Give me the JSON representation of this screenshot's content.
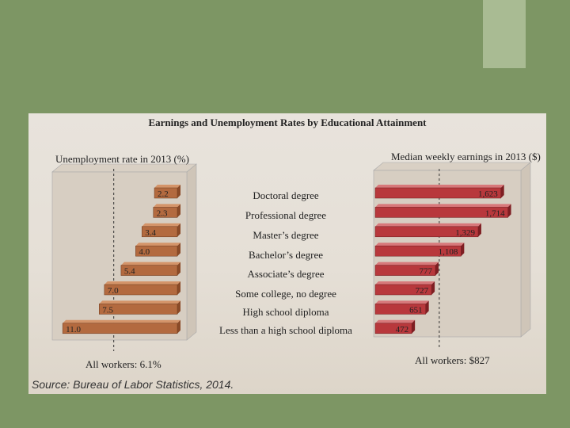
{
  "chart_data": [
    {
      "type": "bar",
      "title": "Earnings and Unemployment Rates by Educational Attainment",
      "panel_label": "Unemployment rate in 2013 (%)",
      "categories": [
        "Doctoral degree",
        "Professional degree",
        "Master’s degree",
        "Bachelor’s degree",
        "Associate’s degree",
        "Some college, no degree",
        "High school diploma",
        "Less than a high school diploma"
      ],
      "values": [
        2.2,
        2.3,
        3.4,
        4.0,
        5.4,
        7.0,
        7.5,
        11.0
      ],
      "value_labels": [
        "2.2",
        "2.3",
        "3.4",
        "4.0",
        "5.4",
        "7.0",
        "7.5",
        "11.0"
      ],
      "reference_value": 6.1,
      "reference_label": "All workers: 6.1%",
      "xlim": [
        0,
        12
      ],
      "orientation": "horizontal-leftward"
    },
    {
      "type": "bar",
      "panel_label": "Median weekly earnings in 2013 ($)",
      "categories": [
        "Doctoral degree",
        "Professional degree",
        "Master’s degree",
        "Bachelor’s degree",
        "Associate’s degree",
        "Some college, no degree",
        "High school diploma",
        "Less than a high school diploma"
      ],
      "values": [
        1623,
        1714,
        1329,
        1108,
        777,
        727,
        651,
        472
      ],
      "value_labels": [
        "1,623",
        "1,714",
        "1,329",
        "1,108",
        "777",
        "727",
        "651",
        "472"
      ],
      "reference_value": 827,
      "reference_label": "All workers: $827",
      "xlim": [
        0,
        1800
      ],
      "orientation": "horizontal-rightward"
    }
  ],
  "source": "Source: Bureau of Labor Statistics, 2014.",
  "colors": {
    "slide_background": "#7d9664",
    "accent_block": "#a9bb93",
    "unemployment_bar": "#b36a3f",
    "earnings_bar": "#b8383c"
  }
}
